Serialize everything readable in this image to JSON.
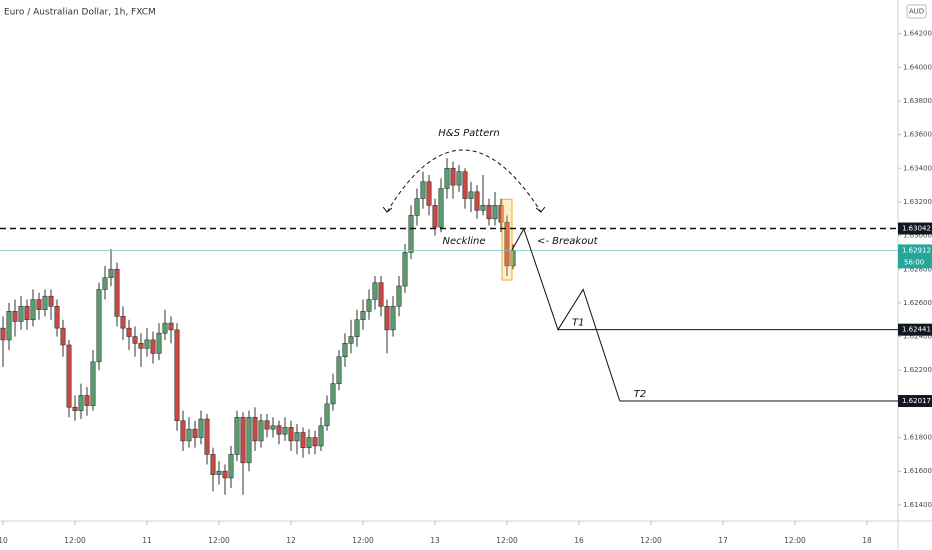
{
  "chart_data": {
    "type": "candlestick",
    "title": "Euro / Australian Dollar, 1h, FXCM",
    "currency": "AUD",
    "up_color": "#5a9e6f",
    "down_color": "#c94a42",
    "open": [
      1.6245,
      1.6238,
      1.6255,
      1.6249,
      1.6258,
      1.625,
      1.6262,
      1.6256,
      1.6264,
      1.6258,
      1.6245,
      1.6235,
      1.6198,
      1.6196,
      1.6205,
      1.6199,
      1.6225,
      1.6268,
      1.6275,
      1.628,
      1.6252,
      1.6245,
      1.624,
      1.6236,
      1.6233,
      1.6238,
      1.623,
      1.6242,
      1.6248,
      1.6244,
      1.619,
      1.6178,
      1.6185,
      1.618,
      1.6191,
      1.617,
      1.6158,
      1.616,
      1.6156,
      1.617,
      1.6192,
      1.6165,
      1.6192,
      1.6178,
      1.619,
      1.6185,
      1.6187,
      1.6182,
      1.6186,
      1.6178,
      1.6183,
      1.6174,
      1.618,
      1.6175,
      1.6187,
      1.62,
      1.6212,
      1.6228,
      1.6236,
      1.624,
      1.625,
      1.6255,
      1.6262,
      1.6272,
      1.6258,
      1.6244,
      1.6258,
      1.627,
      1.629,
      1.6312,
      1.6322,
      1.6332,
      1.6318,
      1.6305,
      1.6328,
      1.634,
      1.633,
      1.6338,
      1.6322,
      1.6326,
      1.6315,
      1.6318,
      1.631,
      1.6318,
      1.6308,
      1.6282
    ],
    "high": [
      1.6252,
      1.626,
      1.6262,
      1.6264,
      1.6262,
      1.6268,
      1.6266,
      1.6268,
      1.6268,
      1.6262,
      1.625,
      1.6238,
      1.6205,
      1.6212,
      1.621,
      1.6232,
      1.6272,
      1.6282,
      1.6292,
      1.6284,
      1.6258,
      1.625,
      1.6246,
      1.6242,
      1.6245,
      1.6243,
      1.6248,
      1.6256,
      1.6252,
      1.6248,
      1.6196,
      1.6192,
      1.619,
      1.6196,
      1.6194,
      1.6174,
      1.6166,
      1.6164,
      1.6175,
      1.6196,
      1.6195,
      1.6196,
      1.6198,
      1.6194,
      1.6194,
      1.6192,
      1.619,
      1.6192,
      1.619,
      1.6188,
      1.6186,
      1.6185,
      1.6184,
      1.6192,
      1.6205,
      1.6218,
      1.6232,
      1.6242,
      1.625,
      1.6256,
      1.6262,
      1.6268,
      1.6276,
      1.6276,
      1.6262,
      1.6264,
      1.6276,
      1.6295,
      1.6318,
      1.6328,
      1.6338,
      1.6336,
      1.6322,
      1.6334,
      1.6346,
      1.6344,
      1.6342,
      1.634,
      1.6332,
      1.633,
      1.6336,
      1.6322,
      1.6326,
      1.6322,
      1.6312,
      1.6295
    ],
    "low": [
      1.6222,
      1.6232,
      1.624,
      1.6244,
      1.6244,
      1.6246,
      1.625,
      1.6252,
      1.625,
      1.624,
      1.6228,
      1.6192,
      1.619,
      1.6191,
      1.6193,
      1.6196,
      1.622,
      1.6262,
      1.627,
      1.6246,
      1.6238,
      1.6232,
      1.6228,
      1.6222,
      1.6228,
      1.6224,
      1.6226,
      1.6238,
      1.6236,
      1.6184,
      1.6172,
      1.6174,
      1.6174,
      1.6176,
      1.6164,
      1.6148,
      1.6152,
      1.6146,
      1.615,
      1.6166,
      1.6146,
      1.616,
      1.6172,
      1.6174,
      1.618,
      1.618,
      1.6176,
      1.6178,
      1.6172,
      1.617,
      1.6168,
      1.617,
      1.617,
      1.6172,
      1.6184,
      1.6196,
      1.6208,
      1.6222,
      1.623,
      1.6234,
      1.6244,
      1.625,
      1.6256,
      1.6252,
      1.623,
      1.624,
      1.6252,
      1.6266,
      1.6286,
      1.6306,
      1.6316,
      1.6312,
      1.63,
      1.6302,
      1.6322,
      1.6322,
      1.6326,
      1.6316,
      1.6314,
      1.631,
      1.6312,
      1.6306,
      1.6306,
      1.6302,
      1.6276,
      1.628
    ],
    "close": [
      1.6238,
      1.6255,
      1.6249,
      1.6258,
      1.625,
      1.6262,
      1.6256,
      1.6264,
      1.6258,
      1.6245,
      1.6235,
      1.6198,
      1.6196,
      1.6205,
      1.6199,
      1.6225,
      1.6268,
      1.6275,
      1.628,
      1.6252,
      1.6245,
      1.624,
      1.6236,
      1.6233,
      1.6238,
      1.623,
      1.6242,
      1.6248,
      1.6244,
      1.619,
      1.6178,
      1.6185,
      1.618,
      1.6191,
      1.617,
      1.6158,
      1.616,
      1.6156,
      1.617,
      1.6192,
      1.6165,
      1.6192,
      1.6178,
      1.619,
      1.6185,
      1.6187,
      1.6182,
      1.6186,
      1.6178,
      1.6183,
      1.6174,
      1.618,
      1.6175,
      1.6187,
      1.62,
      1.6212,
      1.6228,
      1.6236,
      1.624,
      1.625,
      1.6255,
      1.6262,
      1.6272,
      1.6258,
      1.6244,
      1.6258,
      1.627,
      1.629,
      1.6312,
      1.6322,
      1.6332,
      1.6318,
      1.6305,
      1.6328,
      1.634,
      1.633,
      1.6338,
      1.6322,
      1.6326,
      1.6315,
      1.6318,
      1.631,
      1.6318,
      1.6308,
      1.6282,
      1.6291
    ],
    "xlim": [
      -0.5,
      149.17
    ],
    "xticks": [
      {
        "value": 0,
        "label": "10"
      },
      {
        "value": 12,
        "label": "12:00"
      },
      {
        "value": 24,
        "label": "11"
      },
      {
        "value": 36,
        "label": "12:00"
      },
      {
        "value": 48,
        "label": "12"
      },
      {
        "value": 60,
        "label": "12:00"
      },
      {
        "value": 72,
        "label": "13"
      },
      {
        "value": 84,
        "label": "12:00"
      },
      {
        "value": 96,
        "label": "16"
      },
      {
        "value": 108,
        "label": "12:00"
      },
      {
        "value": 120,
        "label": "17"
      },
      {
        "value": 132,
        "label": "12:00"
      },
      {
        "value": 144,
        "label": "18"
      }
    ],
    "ylim": [
      1.6131,
      1.644
    ],
    "yticks": [
      {
        "value": 1.642,
        "label": "1.64200"
      },
      {
        "value": 1.64,
        "label": "1.64000"
      },
      {
        "value": 1.638,
        "label": "1.63800"
      },
      {
        "value": 1.636,
        "label": "1.63600"
      },
      {
        "value": 1.634,
        "label": "1.63400"
      },
      {
        "value": 1.632,
        "label": "1.63200"
      },
      {
        "value": 1.63,
        "label": "1.63000"
      },
      {
        "value": 1.628,
        "label": "1.62800"
      },
      {
        "value": 1.626,
        "label": "1.62600"
      },
      {
        "value": 1.624,
        "label": "1.62400"
      },
      {
        "value": 1.622,
        "label": "1.62200"
      },
      {
        "value": 1.62,
        "label": "1.62000"
      },
      {
        "value": 1.618,
        "label": "1.61800"
      },
      {
        "value": 1.616,
        "label": "1.61600"
      },
      {
        "value": 1.614,
        "label": "1.61400"
      }
    ],
    "grid": false,
    "neckline": 1.63042,
    "last_price": 1.62912,
    "countdown": "56:00",
    "targets": [
      {
        "name": "T1",
        "value": 1.62441
      },
      {
        "name": "T2",
        "value": 1.62017
      }
    ],
    "projection": {
      "x": [
        84.8,
        86.8,
        92.5,
        96.7,
        102.8
      ],
      "y": [
        1.62912,
        1.6304,
        1.62441,
        1.6268,
        1.62017
      ]
    },
    "annotations": {
      "pattern": "H&S Pattern",
      "neckline": "Neckline",
      "breakout": "<- Breakout"
    }
  }
}
